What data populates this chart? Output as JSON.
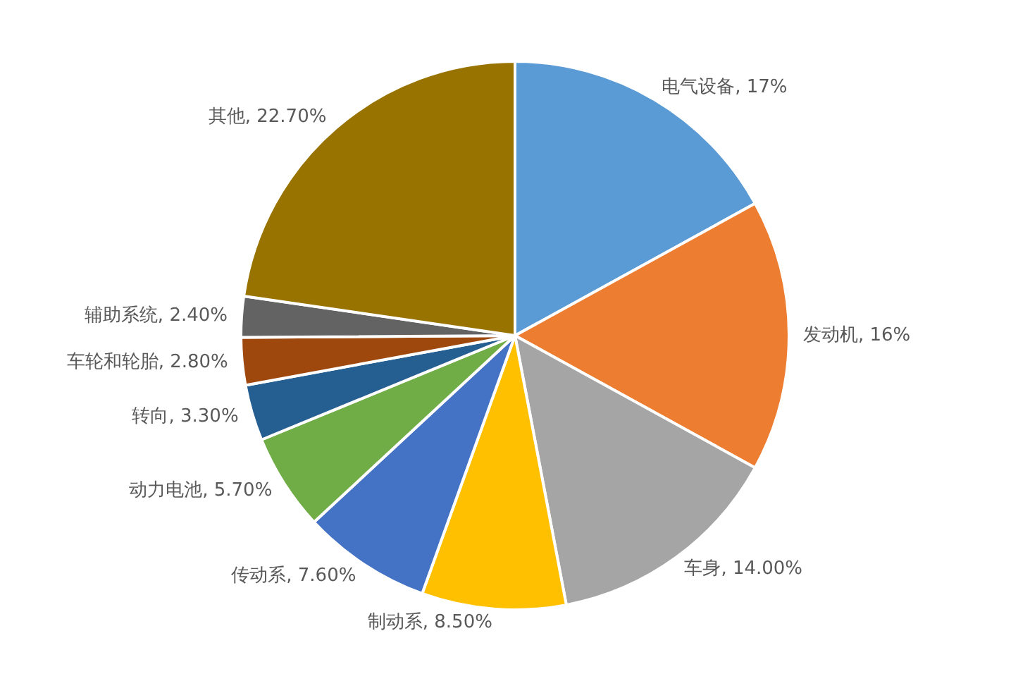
{
  "chart_data": {
    "type": "pie",
    "categories": [
      "电气设备",
      "发动机",
      "车身",
      "制动系",
      "传动系",
      "动力电池",
      "转向",
      "车轮和轮胎",
      "辅助系统",
      "其他"
    ],
    "values": [
      17,
      16,
      14.0,
      8.5,
      7.6,
      5.7,
      3.3,
      2.8,
      2.4,
      22.7
    ],
    "value_labels": [
      "17%",
      "16%",
      "14.00%",
      "8.50%",
      "7.60%",
      "5.70%",
      "3.30%",
      "2.80%",
      "2.40%",
      "22.70%"
    ],
    "colors": [
      "#5b9bd5",
      "#ed7d31",
      "#a5a5a5",
      "#ffc000",
      "#4472c4",
      "#70ad47",
      "#255e91",
      "#9e480e",
      "#636363",
      "#997300"
    ],
    "legend": false
  }
}
